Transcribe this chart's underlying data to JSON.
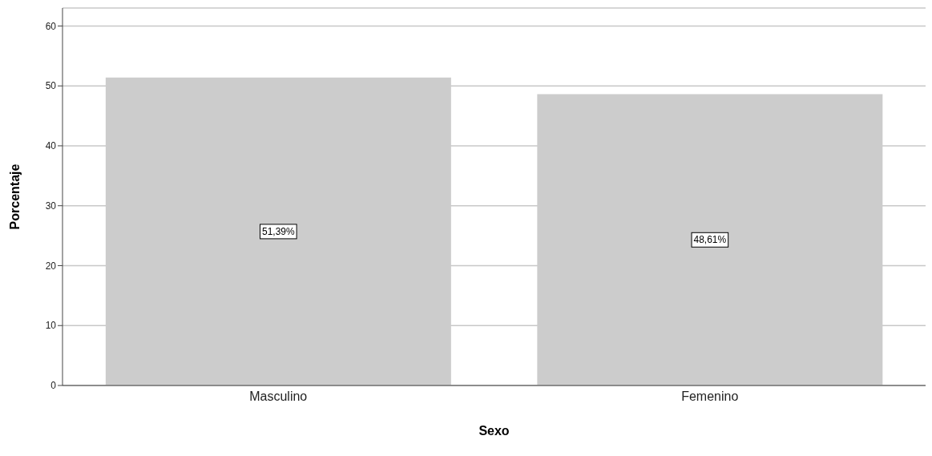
{
  "chart_data": {
    "type": "bar",
    "xlabel": "Sexo",
    "ylabel": "Porcentaje",
    "categories": [
      "Masculino",
      "Femenino"
    ],
    "values": [
      51.39,
      48.61
    ],
    "color": "#cccccc",
    "value_labels": [
      "51,39%",
      "48,61%"
    ],
    "ylim": [
      0,
      63
    ],
    "yticks": [
      0,
      10,
      20,
      30,
      40,
      50,
      60
    ],
    "grid": "y"
  }
}
